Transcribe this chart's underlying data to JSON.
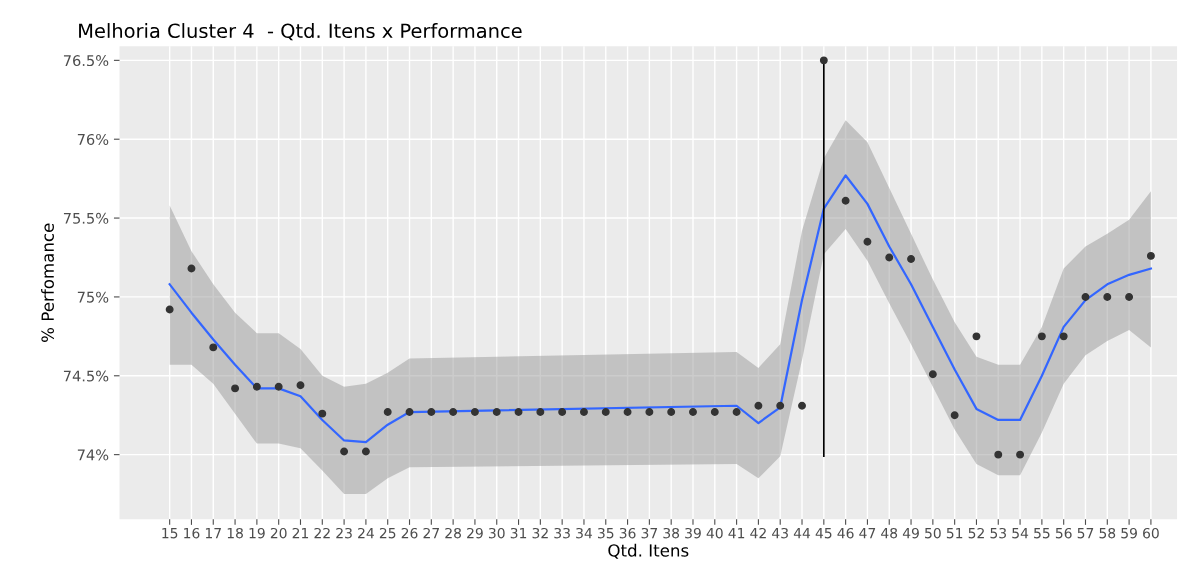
{
  "chart_data": {
    "type": "scatter",
    "title": "Melhoria Cluster 4  - Qtd. Itens x Performance",
    "xlabel": "Qtd. Itens",
    "ylabel": "% Perfomance",
    "x": [
      15,
      16,
      17,
      18,
      19,
      20,
      21,
      22,
      23,
      24,
      25,
      26,
      27,
      28,
      29,
      30,
      31,
      32,
      33,
      34,
      35,
      36,
      37,
      38,
      39,
      40,
      41,
      42,
      43,
      44,
      45,
      46,
      47,
      48,
      49,
      50,
      51,
      52,
      53,
      54,
      55,
      56,
      57,
      58,
      59,
      60
    ],
    "series": [
      {
        "type": "line",
        "color": "#3366ff",
        "x": [
          15,
          16,
          17,
          18,
          19,
          20,
          21,
          22,
          23,
          24,
          25,
          26,
          41,
          42,
          43,
          44,
          45,
          46,
          47,
          48,
          49,
          50,
          51,
          52,
          53,
          54,
          55,
          56,
          57,
          58,
          59,
          60
        ],
        "values": [
          75.08,
          74.9,
          74.73,
          74.57,
          74.42,
          74.42,
          74.37,
          74.22,
          74.09,
          74.08,
          74.19,
          74.27,
          74.31,
          74.2,
          74.3,
          74.98,
          75.56,
          75.77,
          75.59,
          75.32,
          75.08,
          74.81,
          74.54,
          74.29,
          74.22,
          74.22,
          74.5,
          74.81,
          74.98,
          75.08,
          75.14,
          75.18
        ],
        "upper": [
          75.58,
          75.29,
          75.08,
          74.9,
          74.77,
          74.77,
          74.67,
          74.5,
          74.43,
          74.45,
          74.52,
          74.61,
          74.65,
          74.55,
          74.7,
          75.42,
          75.88,
          76.12,
          75.98,
          75.69,
          75.4,
          75.11,
          74.84,
          74.62,
          74.57,
          74.57,
          74.81,
          75.18,
          75.32,
          75.4,
          75.49,
          75.67
        ],
        "lower": [
          74.57,
          74.57,
          74.45,
          74.26,
          74.07,
          74.07,
          74.04,
          73.9,
          73.75,
          73.75,
          73.85,
          73.92,
          73.94,
          73.85,
          73.99,
          74.6,
          75.27,
          75.43,
          75.23,
          74.96,
          74.7,
          74.43,
          74.16,
          73.94,
          73.87,
          73.87,
          74.14,
          74.45,
          74.63,
          74.72,
          74.79,
          74.68
        ]
      },
      {
        "color": "#333333",
        "marker": "circle",
        "values": [
          74.92,
          75.18,
          74.68,
          74.42,
          74.43,
          74.43,
          74.44,
          74.26,
          74.02,
          74.02,
          74.27,
          74.27,
          74.27,
          74.27,
          74.27,
          74.27,
          74.27,
          74.27,
          74.27,
          74.27,
          74.27,
          74.27,
          74.27,
          74.27,
          74.27,
          74.27,
          74.27,
          74.31,
          74.31,
          74.31,
          76.5,
          75.61,
          75.35,
          75.25,
          75.24,
          74.51,
          74.25,
          74.75,
          74.0,
          74.0,
          74.75,
          74.75,
          75.0,
          75.0,
          75.0,
          75.26
        ]
      },
      {
        "type": "line",
        "color": "#000000",
        "x": [
          45,
          45
        ],
        "values": [
          76.5,
          73.99
        ]
      }
    ],
    "xlim": [
      12.7,
      61.2
    ],
    "ylim": [
      73.59,
      76.59
    ],
    "xticks": [
      15,
      16,
      17,
      18,
      19,
      20,
      21,
      22,
      23,
      24,
      25,
      26,
      27,
      28,
      29,
      30,
      31,
      32,
      33,
      34,
      35,
      36,
      37,
      38,
      39,
      40,
      41,
      42,
      43,
      44,
      45,
      46,
      47,
      48,
      49,
      50,
      51,
      52,
      53,
      54,
      55,
      56,
      57,
      58,
      59,
      60
    ],
    "yticks": [
      {
        "value": 74,
        "label": "74%"
      },
      {
        "value": 74.5,
        "label": "74.5%"
      },
      {
        "value": 75,
        "label": "75%"
      },
      {
        "value": 75.5,
        "label": "75.5%"
      },
      {
        "value": 76,
        "label": "76%"
      },
      {
        "value": 76.5,
        "label": "76.5%"
      }
    ],
    "grid": true,
    "legend": false
  }
}
